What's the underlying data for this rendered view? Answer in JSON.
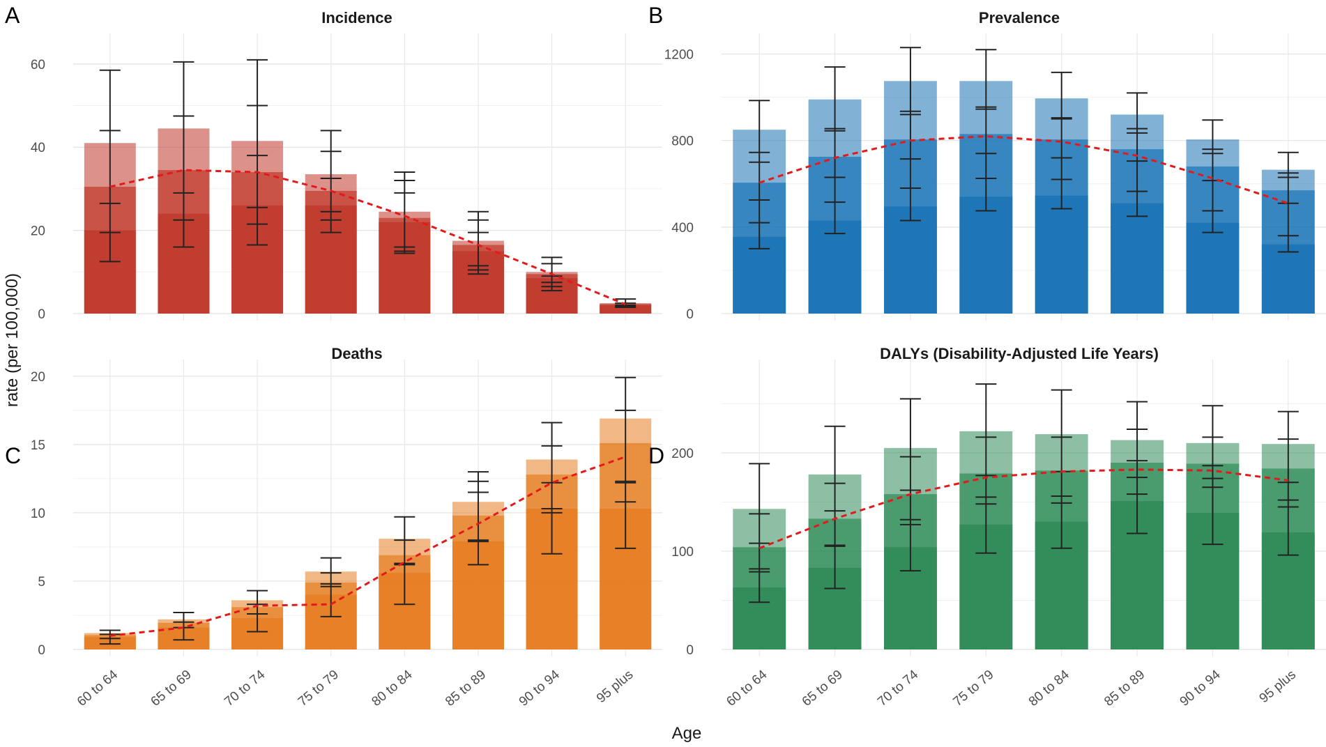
{
  "figure": {
    "ylabel": "rate (per 100,000)",
    "xlabel": "Age"
  },
  "chart_data": [
    {
      "panel": "A",
      "type": "bar",
      "title": "Incidence",
      "color": "#c0392b",
      "categories": [
        "60 to 64",
        "65 to 69",
        "70 to 74",
        "75 to 79",
        "80 to 84",
        "85 to 89",
        "90 to 94",
        "95 plus"
      ],
      "ylim": [
        0,
        65
      ],
      "yticks": [
        0,
        20,
        40,
        60
      ],
      "series": [
        {
          "name": "layer1",
          "values": [
            41,
            44.5,
            41.5,
            33.5,
            24.5,
            17.5,
            10,
            2.5
          ]
        },
        {
          "name": "layer2",
          "values": [
            30.5,
            34.5,
            34,
            29.5,
            23,
            16.5,
            9.5,
            2.3
          ]
        },
        {
          "name": "layer3",
          "values": [
            20,
            24,
            26,
            26,
            22,
            15,
            8.5,
            2
          ]
        }
      ],
      "trend": [
        30.5,
        34.5,
        34,
        29.5,
        23.5,
        16.5,
        9.5,
        2.2
      ],
      "error_bars": [
        {
          "low": 12.5,
          "high": 58.5,
          "ticks": [
            44,
            26.5,
            19.5
          ]
        },
        {
          "low": 16,
          "high": 60.5,
          "ticks": [
            47.5,
            29,
            22.5
          ]
        },
        {
          "low": 16.5,
          "high": 61,
          "ticks": [
            50,
            38,
            25.5,
            21.5
          ]
        },
        {
          "low": 19.5,
          "high": 44,
          "ticks": [
            39,
            32.5,
            24.5,
            22.5
          ]
        },
        {
          "low": 14.5,
          "high": 34,
          "ticks": [
            32,
            29,
            16,
            15
          ]
        },
        {
          "low": 9.5,
          "high": 24.5,
          "ticks": [
            22.5,
            19.5,
            11.5,
            10.5
          ]
        },
        {
          "low": 5.5,
          "high": 13.5,
          "ticks": [
            12,
            9,
            7.5,
            6.5
          ]
        },
        {
          "low": 1.5,
          "high": 3.5,
          "ticks": [
            2.5,
            2,
            1.8
          ]
        }
      ]
    },
    {
      "panel": "B",
      "type": "bar",
      "title": "Prevalence",
      "color": "#1a73b5",
      "categories": [
        "60 to 64",
        "65 to 69",
        "70 to 74",
        "75 to 79",
        "80 to 84",
        "85 to 89",
        "90 to 94",
        "95 plus"
      ],
      "ylim": [
        0,
        1250
      ],
      "yticks": [
        0,
        400,
        800,
        1200
      ],
      "series": [
        {
          "name": "layer1",
          "values": [
            850,
            990,
            1075,
            1075,
            995,
            920,
            805,
            665
          ]
        },
        {
          "name": "layer2",
          "values": [
            605,
            725,
            805,
            830,
            805,
            760,
            680,
            570
          ]
        },
        {
          "name": "layer3",
          "values": [
            355,
            430,
            495,
            540,
            545,
            510,
            420,
            320
          ]
        }
      ],
      "trend": [
        605,
        720,
        800,
        820,
        795,
        730,
        625,
        510
      ],
      "error_bars": [
        {
          "low": 300,
          "high": 985,
          "ticks": [
            745,
            700,
            525,
            420
          ]
        },
        {
          "low": 370,
          "high": 1140,
          "ticks": [
            855,
            845,
            630,
            515
          ]
        },
        {
          "low": 430,
          "high": 1230,
          "ticks": [
            935,
            920,
            715,
            580
          ]
        },
        {
          "low": 475,
          "high": 1220,
          "ticks": [
            955,
            945,
            740,
            625
          ]
        },
        {
          "low": 485,
          "high": 1115,
          "ticks": [
            905,
            900,
            720,
            620
          ]
        },
        {
          "low": 450,
          "high": 1020,
          "ticks": [
            855,
            835,
            705,
            565
          ]
        },
        {
          "low": 375,
          "high": 895,
          "ticks": [
            760,
            740,
            615,
            475
          ]
        },
        {
          "low": 285,
          "high": 745,
          "ticks": [
            650,
            630,
            510,
            360
          ]
        }
      ]
    },
    {
      "panel": "C",
      "type": "bar",
      "title": "Deaths",
      "color": "#e67e22",
      "categories": [
        "60 to 64",
        "65 to 69",
        "70 to 74",
        "75 to 79",
        "80 to 84",
        "85 to 89",
        "90 to 94",
        "95 plus"
      ],
      "ylim": [
        0,
        20.5
      ],
      "yticks": [
        0,
        5,
        10,
        15,
        20
      ],
      "series": [
        {
          "name": "layer1",
          "values": [
            1.2,
            2.2,
            3.6,
            5.7,
            8.1,
            10.8,
            13.9,
            16.9
          ]
        },
        {
          "name": "layer2",
          "values": [
            1.05,
            1.95,
            3.1,
            4.9,
            6.9,
            9.8,
            12.8,
            15.1
          ]
        },
        {
          "name": "layer3",
          "values": [
            0.9,
            1.6,
            2.3,
            4,
            5.6,
            7.9,
            10.3,
            10.3
          ]
        }
      ],
      "trend": [
        1,
        1.6,
        3.2,
        3.3,
        6.4,
        9.2,
        12.2,
        14.1
      ],
      "error_bars": [
        {
          "low": 0.4,
          "high": 1.4,
          "ticks": [
            1.1,
            0.8
          ]
        },
        {
          "low": 0.7,
          "high": 2.7,
          "ticks": [
            2,
            1.6
          ]
        },
        {
          "low": 1.3,
          "high": 4.3,
          "ticks": [
            3.3,
            2.6
          ]
        },
        {
          "low": 2.4,
          "high": 6.7,
          "ticks": [
            5.6,
            4.8,
            4.6
          ]
        },
        {
          "low": 3.3,
          "high": 9.7,
          "ticks": [
            8,
            6.3,
            6.2
          ]
        },
        {
          "low": 6.2,
          "high": 13,
          "ticks": [
            12.3,
            11.5,
            8,
            7.9
          ]
        },
        {
          "low": 7,
          "high": 16.6,
          "ticks": [
            14.9,
            12.2,
            10.3,
            10
          ]
        },
        {
          "low": 7.4,
          "high": 19.9,
          "ticks": [
            17.5,
            12.3,
            12.2,
            10.8
          ]
        }
      ]
    },
    {
      "panel": "D",
      "type": "bar",
      "title": "DALYs (Disability-Adjusted Life Years)",
      "color": "#2e8b57",
      "categories": [
        "60 to 64",
        "65 to 69",
        "70 to 74",
        "75 to 79",
        "80 to 84",
        "85 to 89",
        "90 to 94",
        "95 plus"
      ],
      "ylim": [
        0,
        285
      ],
      "yticks": [
        0,
        100,
        200
      ],
      "series": [
        {
          "name": "layer1",
          "values": [
            143,
            178,
            205,
            222,
            219,
            213,
            210,
            209
          ]
        },
        {
          "name": "layer2",
          "values": [
            104,
            133,
            158,
            179,
            182,
            190,
            189,
            184
          ]
        },
        {
          "name": "layer3",
          "values": [
            63,
            83,
            104,
            127,
            130,
            151,
            139,
            119
          ]
        }
      ],
      "trend": [
        103,
        133,
        158,
        175,
        181,
        183,
        182,
        172
      ],
      "error_bars": [
        {
          "low": 48,
          "high": 189,
          "ticks": [
            138,
            108,
            82,
            79
          ]
        },
        {
          "low": 62,
          "high": 227,
          "ticks": [
            169,
            141,
            106,
            105
          ]
        },
        {
          "low": 80,
          "high": 255,
          "ticks": [
            196,
            162,
            132,
            127
          ]
        },
        {
          "low": 98,
          "high": 270,
          "ticks": [
            216,
            177,
            155,
            148
          ]
        },
        {
          "low": 103,
          "high": 264,
          "ticks": [
            216,
            181,
            156,
            149
          ]
        },
        {
          "low": 118,
          "high": 252,
          "ticks": [
            224,
            192,
            175,
            158
          ]
        },
        {
          "low": 107,
          "high": 248,
          "ticks": [
            216,
            187,
            174,
            165
          ]
        },
        {
          "low": 96,
          "high": 242,
          "ticks": [
            214,
            170,
            152,
            145
          ]
        }
      ]
    }
  ]
}
